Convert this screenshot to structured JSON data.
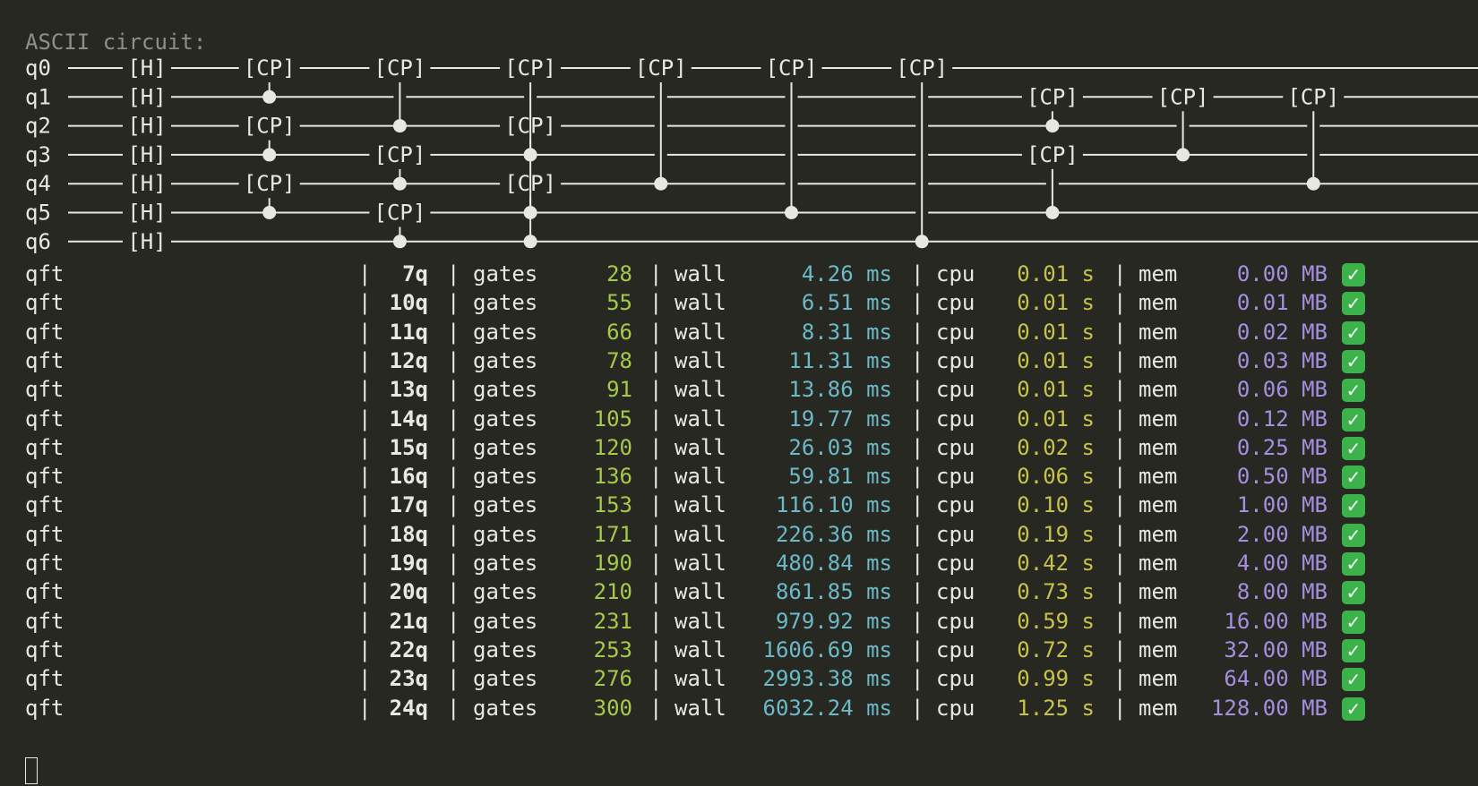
{
  "terminal": {
    "heading": "ASCII circuit:",
    "circuit": {
      "qubits": [
        "q0",
        "q1",
        "q2",
        "q3",
        "q4",
        "q5",
        "q6"
      ],
      "h_gate": "[H]",
      "cp_gate": "[CP]",
      "gates": [
        {
          "qubit": 0,
          "label": "[H]",
          "col": 0
        },
        {
          "qubit": 1,
          "label": "[H]",
          "col": 0
        },
        {
          "qubit": 2,
          "label": "[H]",
          "col": 0
        },
        {
          "qubit": 3,
          "label": "[H]",
          "col": 0
        },
        {
          "qubit": 4,
          "label": "[H]",
          "col": 0
        },
        {
          "qubit": 5,
          "label": "[H]",
          "col": 0
        },
        {
          "qubit": 6,
          "label": "[H]",
          "col": 0
        }
      ],
      "moments": [
        {
          "col": 1,
          "cps": [
            [
              0,
              1
            ],
            [
              2,
              3
            ],
            [
              4,
              5
            ]
          ]
        },
        {
          "col": 2,
          "cps": [
            [
              0,
              2
            ],
            [
              3,
              4
            ],
            [
              5,
              6
            ]
          ]
        },
        {
          "col": 3,
          "cps": [
            [
              0,
              3
            ],
            [
              4,
              6
            ],
            [
              2,
              5
            ]
          ]
        },
        {
          "col": 4,
          "cps": [
            [
              0,
              4
            ]
          ]
        },
        {
          "col": 5,
          "cps": [
            [
              0,
              5
            ]
          ]
        },
        {
          "col": 6,
          "cps": [
            [
              0,
              6
            ]
          ]
        },
        {
          "col": 7,
          "cps": [
            [
              1,
              2
            ],
            [
              3,
              5
            ]
          ]
        },
        {
          "col": 8,
          "cps": [
            [
              1,
              3
            ]
          ]
        },
        {
          "col": 9,
          "cps": [
            [
              1,
              4
            ]
          ]
        }
      ]
    },
    "separator": "|",
    "gates_label": "gates",
    "wall_label": "wall",
    "cpu_label": "cpu",
    "mem_label": "mem",
    "wall_unit": "ms",
    "cpu_unit": "s",
    "mem_unit": "MB",
    "status_icon": "check-mark-icon",
    "status_glyph": "✓",
    "colors": {
      "background": "#272822",
      "text": "#e8e8e2",
      "heading": "#8f8f86",
      "gates": "#a6c94a",
      "wall": "#6cb9c8",
      "cpu": "#c9c24a",
      "mem": "#a58fe0",
      "check": "#3cb34a"
    },
    "results": [
      {
        "algo": "qft",
        "qubits": "7q",
        "gates": "28",
        "wall": "4.26",
        "cpu": "0.01",
        "mem": "0.00"
      },
      {
        "algo": "qft",
        "qubits": "10q",
        "gates": "55",
        "wall": "6.51",
        "cpu": "0.01",
        "mem": "0.01"
      },
      {
        "algo": "qft",
        "qubits": "11q",
        "gates": "66",
        "wall": "8.31",
        "cpu": "0.01",
        "mem": "0.02"
      },
      {
        "algo": "qft",
        "qubits": "12q",
        "gates": "78",
        "wall": "11.31",
        "cpu": "0.01",
        "mem": "0.03"
      },
      {
        "algo": "qft",
        "qubits": "13q",
        "gates": "91",
        "wall": "13.86",
        "cpu": "0.01",
        "mem": "0.06"
      },
      {
        "algo": "qft",
        "qubits": "14q",
        "gates": "105",
        "wall": "19.77",
        "cpu": "0.01",
        "mem": "0.12"
      },
      {
        "algo": "qft",
        "qubits": "15q",
        "gates": "120",
        "wall": "26.03",
        "cpu": "0.02",
        "mem": "0.25"
      },
      {
        "algo": "qft",
        "qubits": "16q",
        "gates": "136",
        "wall": "59.81",
        "cpu": "0.06",
        "mem": "0.50"
      },
      {
        "algo": "qft",
        "qubits": "17q",
        "gates": "153",
        "wall": "116.10",
        "cpu": "0.10",
        "mem": "1.00"
      },
      {
        "algo": "qft",
        "qubits": "18q",
        "gates": "171",
        "wall": "226.36",
        "cpu": "0.19",
        "mem": "2.00"
      },
      {
        "algo": "qft",
        "qubits": "19q",
        "gates": "190",
        "wall": "480.84",
        "cpu": "0.42",
        "mem": "4.00"
      },
      {
        "algo": "qft",
        "qubits": "20q",
        "gates": "210",
        "wall": "861.85",
        "cpu": "0.73",
        "mem": "8.00"
      },
      {
        "algo": "qft",
        "qubits": "21q",
        "gates": "231",
        "wall": "979.92",
        "cpu": "0.59",
        "mem": "16.00"
      },
      {
        "algo": "qft",
        "qubits": "22q",
        "gates": "253",
        "wall": "1606.69",
        "cpu": "0.72",
        "mem": "32.00"
      },
      {
        "algo": "qft",
        "qubits": "23q",
        "gates": "276",
        "wall": "2993.38",
        "cpu": "0.99",
        "mem": "64.00"
      },
      {
        "algo": "qft",
        "qubits": "24q",
        "gates": "300",
        "wall": "6032.24",
        "cpu": "1.25",
        "mem": "128.00"
      }
    ]
  }
}
